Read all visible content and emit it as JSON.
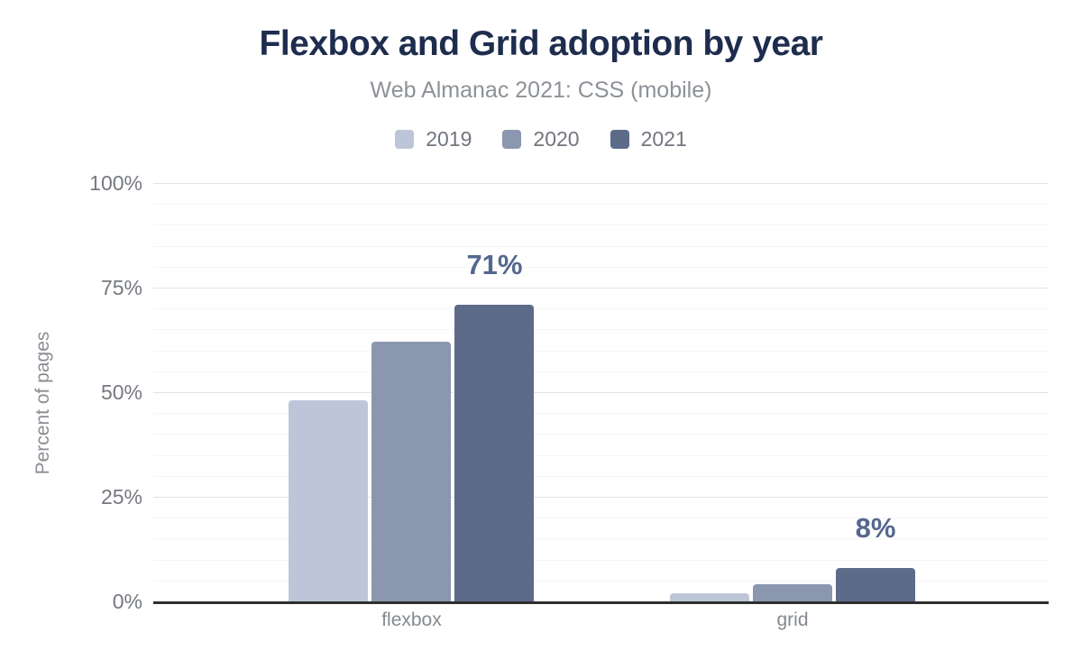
{
  "chart_data": {
    "type": "bar",
    "title": "Flexbox and Grid adoption by year",
    "subtitle": "Web Almanac 2021: CSS (mobile)",
    "categories": [
      "flexbox",
      "grid"
    ],
    "series": [
      {
        "name": "2019",
        "color": "#bdc6d8",
        "values": [
          48,
          2
        ],
        "data_labels": [
          "",
          ""
        ]
      },
      {
        "name": "2020",
        "color": "#8b97ae",
        "values": [
          62,
          4
        ],
        "data_labels": [
          "",
          ""
        ]
      },
      {
        "name": "2021",
        "color": "#5c6b89",
        "values": [
          71,
          8
        ],
        "data_labels": [
          "71%",
          "8%"
        ]
      }
    ],
    "xlabel": "",
    "ylabel": "Percent of pages",
    "ylim": [
      0,
      100
    ],
    "yticks": [
      {
        "value": 0,
        "label": "0%"
      },
      {
        "value": 25,
        "label": "25%"
      },
      {
        "value": 50,
        "label": "50%"
      },
      {
        "value": 75,
        "label": "75%"
      },
      {
        "value": 100,
        "label": "100%"
      }
    ],
    "minor_grid_step": 5,
    "grid": true,
    "legend_position": "top"
  },
  "colors": {
    "title": "#1e2c4e",
    "subtitle_text": "#8d9298",
    "axis_line": "#2f2f2f",
    "tick_text": "#75797f",
    "data_label_text": "#55678e",
    "gridline_major": "#e3e3e3",
    "gridline_minor": "#f5f5f5",
    "background": "#ffffff"
  }
}
